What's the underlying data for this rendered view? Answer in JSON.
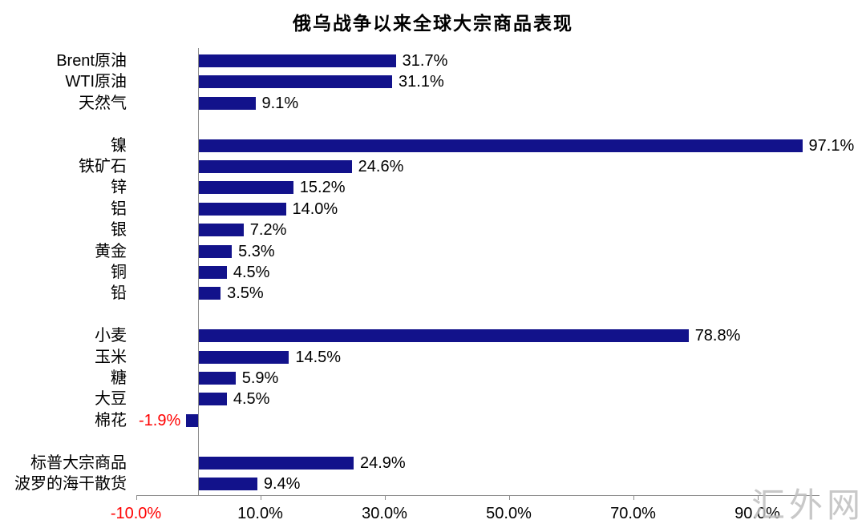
{
  "watermark": "汇外网",
  "colors": {
    "bar": "#12128b",
    "negative": "#ff0000",
    "axis": "#8c8c8c",
    "text": "#000000",
    "watermark": "#bfbfbf"
  },
  "chart_data": {
    "type": "bar",
    "orientation": "horizontal",
    "title": "俄乌战争以来全球大宗商品表现",
    "xlabel": "",
    "ylabel": "",
    "xlim": [
      -10,
      100
    ],
    "grid": false,
    "legend": false,
    "value_suffix": "%",
    "x_ticks": [
      {
        "label": "-10.0%",
        "value": -10,
        "negative": true
      },
      {
        "label": "10.0%",
        "value": 10,
        "negative": false
      },
      {
        "label": "30.0%",
        "value": 30,
        "negative": false
      },
      {
        "label": "50.0%",
        "value": 50,
        "negative": false
      },
      {
        "label": "70.0%",
        "value": 70,
        "negative": false
      },
      {
        "label": "90.0%",
        "value": 90,
        "negative": false
      }
    ],
    "groups": [
      [
        {
          "label": "Brent原油",
          "value": 31.7,
          "value_label": "31.7%"
        },
        {
          "label": "WTI原油",
          "value": 31.1,
          "value_label": "31.1%"
        },
        {
          "label": "天然气",
          "value": 9.1,
          "value_label": "9.1%"
        }
      ],
      [
        {
          "label": "镍",
          "value": 97.1,
          "value_label": "97.1%"
        },
        {
          "label": "铁矿石",
          "value": 24.6,
          "value_label": "24.6%"
        },
        {
          "label": "锌",
          "value": 15.2,
          "value_label": "15.2%"
        },
        {
          "label": "铝",
          "value": 14.0,
          "value_label": "14.0%"
        },
        {
          "label": "银",
          "value": 7.2,
          "value_label": "7.2%"
        },
        {
          "label": "黄金",
          "value": 5.3,
          "value_label": "5.3%"
        },
        {
          "label": "铜",
          "value": 4.5,
          "value_label": "4.5%"
        },
        {
          "label": "铅",
          "value": 3.5,
          "value_label": "3.5%"
        }
      ],
      [
        {
          "label": "小麦",
          "value": 78.8,
          "value_label": "78.8%"
        },
        {
          "label": "玉米",
          "value": 14.5,
          "value_label": "14.5%"
        },
        {
          "label": "糖",
          "value": 5.9,
          "value_label": "5.9%"
        },
        {
          "label": "大豆",
          "value": 4.5,
          "value_label": "4.5%"
        },
        {
          "label": "棉花",
          "value": -1.9,
          "value_label": "-1.9%"
        }
      ],
      [
        {
          "label": "标普大宗商品",
          "value": 24.9,
          "value_label": "24.9%"
        },
        {
          "label": "波罗的海干散货",
          "value": 9.4,
          "value_label": "9.4%"
        }
      ]
    ]
  }
}
